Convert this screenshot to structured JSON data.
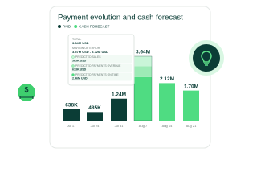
{
  "chart_data": {
    "type": "bar",
    "title": "Payment evolution and cash forecast",
    "legend": [
      {
        "name": "PAID",
        "color": "#0b3d36"
      },
      {
        "name": "CASH FORECAST",
        "color": "#4fdc82"
      }
    ],
    "categories": [
      "Jul 17",
      "Jul 24",
      "Jul 31",
      "Aug 7",
      "Aug 14",
      "Aug 21"
    ],
    "values": [
      638000,
      485000,
      1240000,
      3640000,
      2120000,
      1700000
    ],
    "value_labels": [
      "638K",
      "485K",
      "1.24M",
      "3.64M",
      "2.12M",
      "1.70M"
    ],
    "colors": [
      "#0b3d36",
      "#0b3d36",
      "#0b3d36",
      "#4fdc82",
      "#4fdc82",
      "#4fdc82"
    ],
    "tooltip": {
      "total_label": "TOTAL",
      "total": "3.64M USD",
      "margin_label": "MARGIN OF ERROR",
      "margin": "3.57M USD - 3.72M USD",
      "items": [
        {
          "label": "PREDICTED SALES",
          "value": 565000,
          "value_label": "565K USD",
          "color": "#c9f5d8"
        },
        {
          "label": "PREDICTED PAYMENTS OVERDUE",
          "value": 613000,
          "value_label": "613K USD",
          "color": "#9debb6"
        },
        {
          "label": "PREDICTED PAYMENTS ON TIME",
          "value": 2460000,
          "value_label": "2.46M USD",
          "color": "#4fdc82"
        }
      ]
    }
  }
}
